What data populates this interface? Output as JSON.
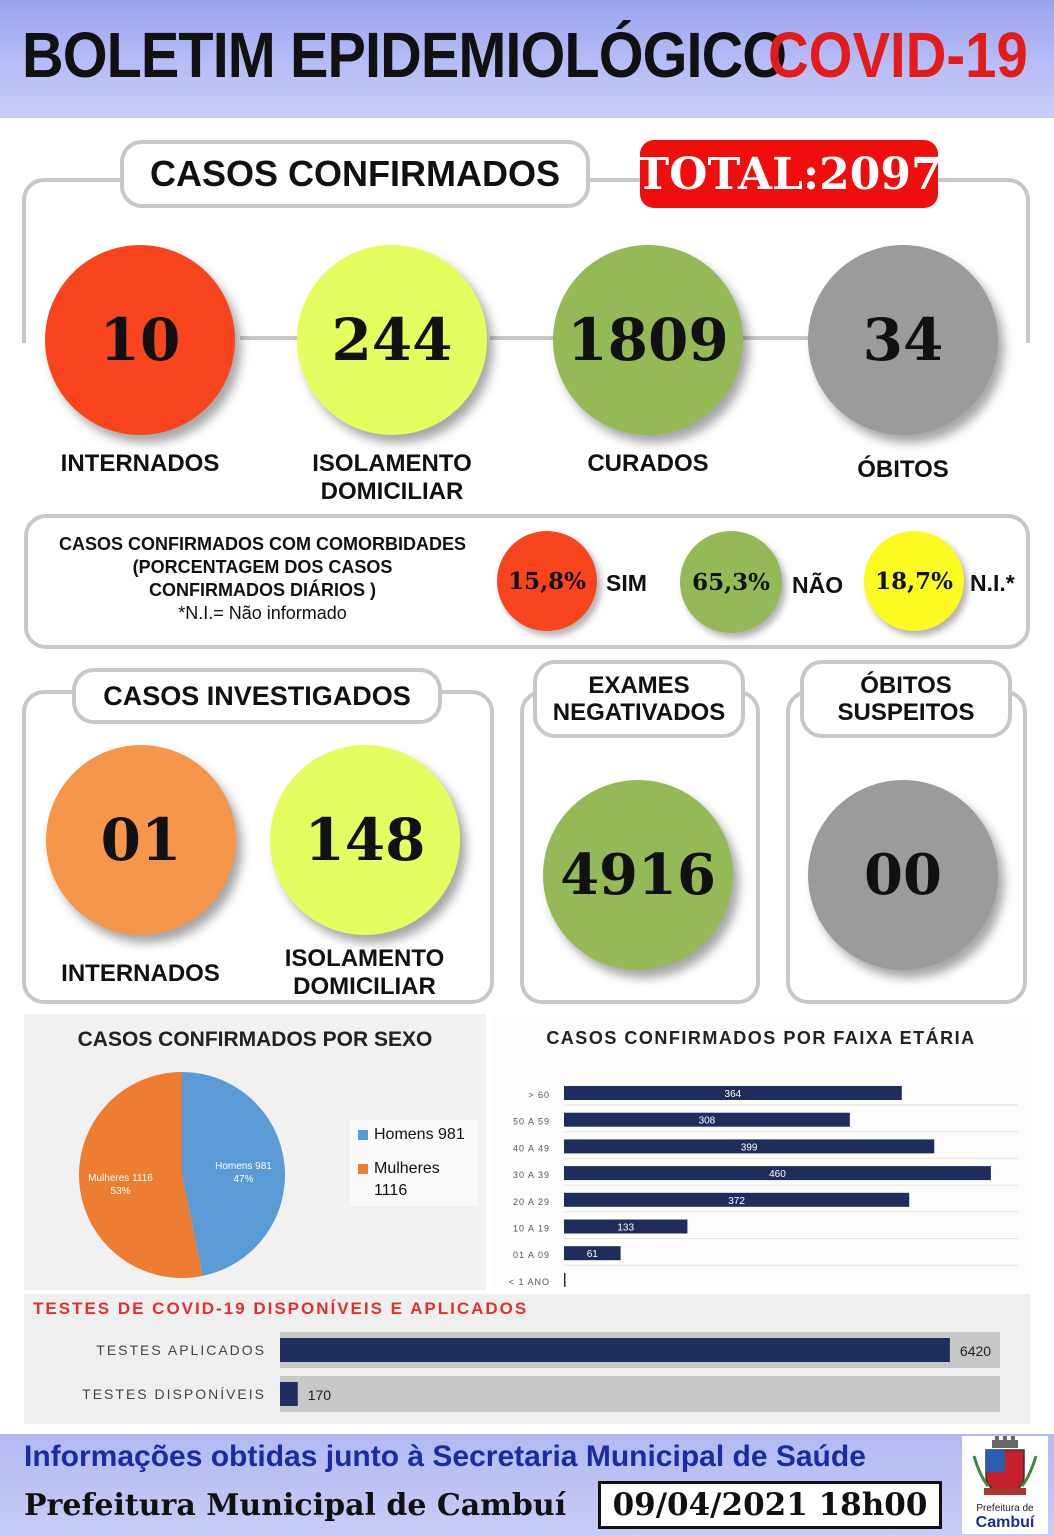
{
  "header": {
    "title": "BOLETIM EPIDEMIOLÓGICO",
    "covid": "COVID-19"
  },
  "confirmed": {
    "title": "CASOS CONFIRMADOS",
    "total": "TOTAL:2097",
    "items": [
      {
        "value": "10",
        "label": "INTERNADOS",
        "color": "#f8451d"
      },
      {
        "value": "244",
        "label": "ISOLAMENTO DOMICILIAR",
        "color": "#e6fd60"
      },
      {
        "value": "1809",
        "label": "CURADOS",
        "color": "#96b957"
      },
      {
        "value": "34",
        "label": "ÓBITOS",
        "color": "#9b9b9b"
      }
    ]
  },
  "comorbidities": {
    "line1": "CASOS CONFIRMADOS COM COMORBIDADES",
    "line2": "(PORCENTAGEM DOS CASOS",
    "line3": "CONFIRMADOS DIÁRIOS )",
    "line4": "*N.I.= Não informado",
    "items": [
      {
        "value": "15,8%",
        "label": "SIM",
        "color": "#f8451d"
      },
      {
        "value": "65,3%",
        "label": "NÃO",
        "color": "#96b957"
      },
      {
        "value": "18,7%",
        "label": "N.I.*",
        "color": "#fbfb22"
      }
    ]
  },
  "investigated": {
    "title": "CASOS INVESTIGADOS",
    "items": [
      {
        "value": "01",
        "label": "INTERNADOS",
        "color": "#f6964a"
      },
      {
        "value": "148",
        "label": "ISOLAMENTO DOMICILIAR",
        "color": "#e6fd60"
      }
    ]
  },
  "negative": {
    "title_line1": "EXAMES",
    "title_line2": "NEGATIVADOS",
    "value": "4916"
  },
  "suspect_deaths": {
    "title_line1": "ÓBITOS",
    "title_line2": "SUSPEITOS",
    "value": "00"
  },
  "chart_data": [
    {
      "type": "pie",
      "title": "CASOS CONFIRMADOS POR SEXO",
      "categories": [
        "Homens",
        "Mulheres"
      ],
      "values": [
        981,
        1116
      ],
      "percent_labels": [
        "47%",
        "53%"
      ],
      "slice_labels": [
        "Homens 981",
        "Mulheres 1116"
      ],
      "legend": [
        "Homens 981",
        "Mulheres 1116"
      ],
      "colors": [
        "#5b9bd5",
        "#ed7d31"
      ],
      "legend_position": "right"
    },
    {
      "type": "bar",
      "orientation": "horizontal",
      "title": "CASOS CONFIRMADOS POR FAIXA ETÁRIA",
      "categories": [
        "> 60",
        "50 A 59",
        "40 A 49",
        "30 A 39",
        "20 A 29",
        "10 A 19",
        "01 A 09",
        "< 1 ANO"
      ],
      "values": [
        364,
        308,
        399,
        460,
        372,
        133,
        61,
        1
      ],
      "value_labels": [
        "364",
        "308",
        "399",
        "460",
        "372",
        "133",
        "61",
        ""
      ],
      "xlim": [
        0,
        500
      ],
      "grid": true,
      "color": "#1f2d5c"
    },
    {
      "type": "bar",
      "orientation": "horizontal",
      "title": "TESTES DE COVID-19 DISPONÍVEIS E APLICADOS",
      "categories": [
        "TESTES APLICADOS",
        "TESTES DISPONÍVEIS"
      ],
      "values": [
        6420,
        170
      ],
      "value_labels": [
        "6420",
        "170"
      ],
      "xlim": [
        0,
        6900
      ],
      "color": "#1f2d5c",
      "track_color": "#c8c8c8",
      "title_color": "#e03030"
    }
  ],
  "footer": {
    "source": "Informações obtidas junto à Secretaria Municipal de Saúde",
    "city": "Prefeitura Municipal de Cambuí",
    "datetime": "09/04/2021 18h00",
    "logo_text1": "Prefeitura de",
    "logo_text2": "Cambuí"
  }
}
